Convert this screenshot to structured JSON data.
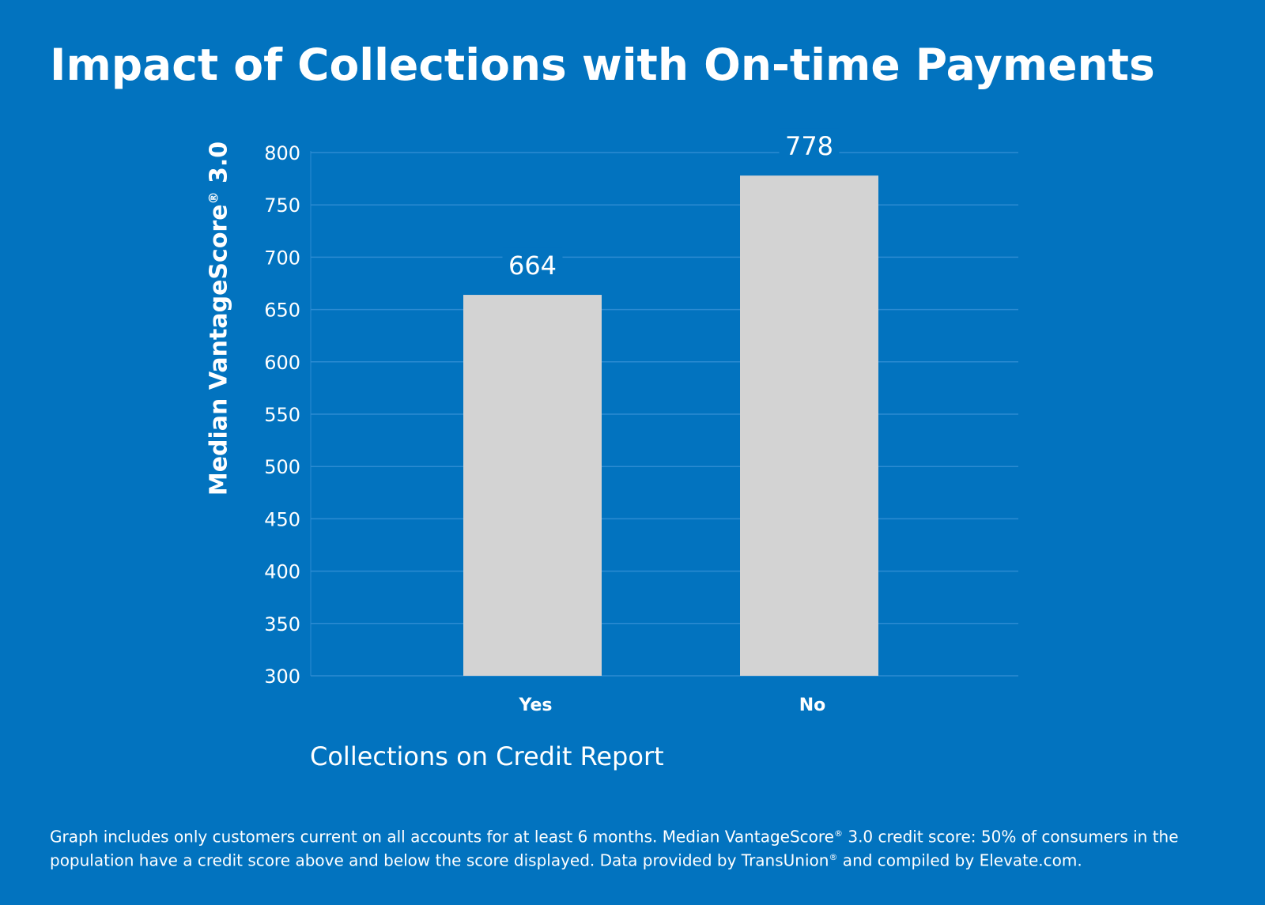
{
  "chart_data": {
    "type": "bar",
    "title": "Impact of Collections with On-time Payments",
    "categories": [
      "Yes",
      "No"
    ],
    "values": [
      664,
      778
    ],
    "data_labels": [
      "664",
      "778"
    ],
    "xlabel": "Collections on Credit Report",
    "ylabel_main": "Median VantageScore",
    "ylabel_mark": "®",
    "ylabel_tail": " 3.0",
    "ylim": [
      300,
      800
    ],
    "yticks": [
      300,
      350,
      400,
      450,
      500,
      550,
      600,
      650,
      700,
      750,
      800
    ],
    "grid": true,
    "colors": {
      "background": "#0273BF",
      "bar": "#D3D3D3",
      "grid": "#2C8BD2"
    }
  },
  "footnote": {
    "part1": "Graph includes only customers current on all accounts for at least 6 months. Median VantageScore",
    "mark1": "®",
    "part2": " 3.0 credit score: 50% of consumers in the population have a credit score above and below the score displayed. Data provided by TransUnion",
    "mark2": "®",
    "part3": " and compiled by Elevate.com."
  }
}
